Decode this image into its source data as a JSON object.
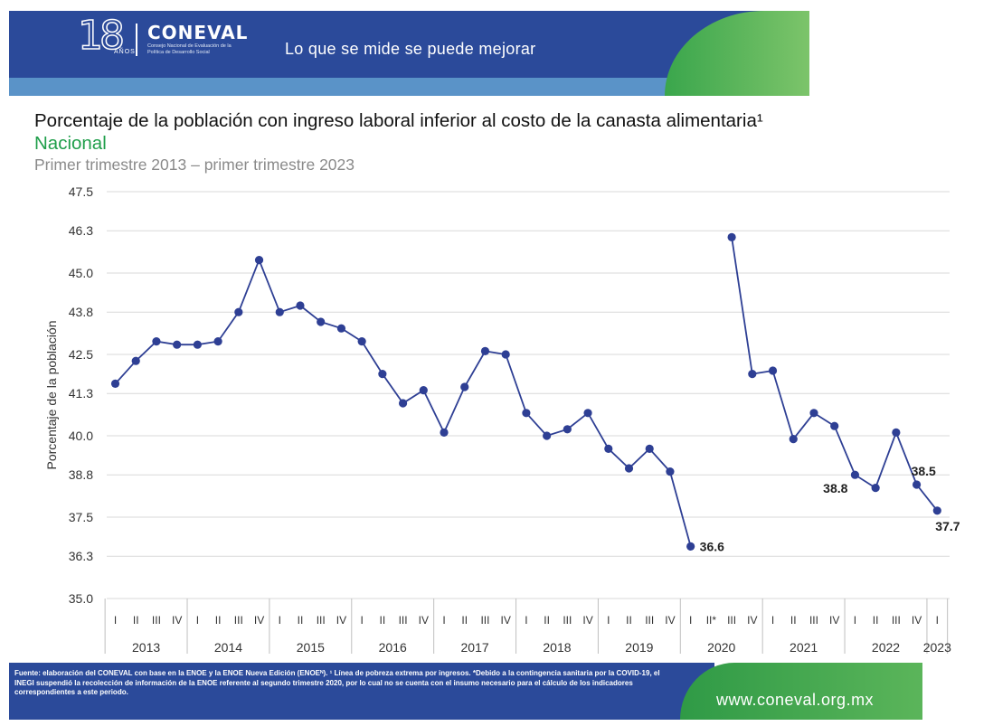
{
  "header": {
    "logo_number": "18",
    "logo_years": "AÑOS",
    "logo_name": "CONEVAL",
    "logo_subtitle": "Consejo Nacional de Evaluación de la Política de Desarrollo Social",
    "tagline": "Lo que se mide se puede mejorar",
    "colors": {
      "blue": "#2b4a9a",
      "light_blue": "#5a93c8",
      "green": "#3aa64c"
    }
  },
  "title": {
    "main": "Porcentaje de la población con ingreso laboral inferior al costo de la canasta alimentaria¹",
    "region": "Nacional",
    "period": "Primer trimestre 2013 – primer trimestre 2023"
  },
  "chart_data": {
    "type": "line",
    "title": "Porcentaje de la población con ingreso laboral inferior al costo de la canasta alimentaria¹",
    "ylabel": "Porcentaje de la población",
    "xlabel": "",
    "ylim": [
      35.0,
      47.5
    ],
    "yticks": [
      "47.5",
      "46.3",
      "45.0",
      "43.8",
      "42.5",
      "41.3",
      "40.0",
      "38.8",
      "37.5",
      "36.3",
      "35.0"
    ],
    "grid": true,
    "line_color": "#2e3f94",
    "years": [
      {
        "label": "2013",
        "quarters": [
          "I",
          "II",
          "III",
          "IV"
        ]
      },
      {
        "label": "2014",
        "quarters": [
          "I",
          "II",
          "III",
          "IV"
        ]
      },
      {
        "label": "2015",
        "quarters": [
          "I",
          "II",
          "III",
          "IV"
        ]
      },
      {
        "label": "2016",
        "quarters": [
          "I",
          "II",
          "III",
          "IV"
        ]
      },
      {
        "label": "2017",
        "quarters": [
          "I",
          "II",
          "III",
          "IV"
        ]
      },
      {
        "label": "2018",
        "quarters": [
          "I",
          "II",
          "III",
          "IV"
        ]
      },
      {
        "label": "2019",
        "quarters": [
          "I",
          "II",
          "III",
          "IV"
        ]
      },
      {
        "label": "2020",
        "quarters": [
          "I",
          "II*",
          "III",
          "IV"
        ]
      },
      {
        "label": "2021",
        "quarters": [
          "I",
          "II",
          "III",
          "IV"
        ]
      },
      {
        "label": "2022",
        "quarters": [
          "I",
          "II",
          "III",
          "IV"
        ]
      },
      {
        "label": "2023",
        "quarters": [
          "I"
        ]
      }
    ],
    "values": [
      41.6,
      42.3,
      42.9,
      42.8,
      42.8,
      42.9,
      43.8,
      45.4,
      43.8,
      44.0,
      43.5,
      43.3,
      42.9,
      41.9,
      41.0,
      41.4,
      40.1,
      41.5,
      42.6,
      42.5,
      40.7,
      40.0,
      40.2,
      40.7,
      39.6,
      39.0,
      39.6,
      38.9,
      36.6,
      null,
      46.1,
      41.9,
      42.0,
      39.9,
      40.7,
      40.3,
      38.8,
      38.4,
      40.1,
      38.5,
      37.7
    ],
    "annotations": [
      {
        "index": 28,
        "text": "36.6",
        "position": "right"
      },
      {
        "index": 36,
        "text": "38.8",
        "position": "below-left"
      },
      {
        "index": 39,
        "text": "38.5",
        "position": "above"
      },
      {
        "index": 40,
        "text": "37.7",
        "position": "below"
      }
    ]
  },
  "footer": {
    "source": "Fuente: elaboración del CONEVAL con base en la ENOE y la ENOE Nueva Edición (ENOEᴺ). ¹ Línea de pobreza extrema por ingresos. *Debido a la contingencia sanitaria por la COVID-19, el INEGI suspendió la recolección de información de la ENOE referente al segundo trimestre 2020, por lo cual no se cuenta con el insumo necesario para el cálculo de los indicadores correspondientes a este periodo.",
    "url": "www.coneval.org.mx"
  }
}
